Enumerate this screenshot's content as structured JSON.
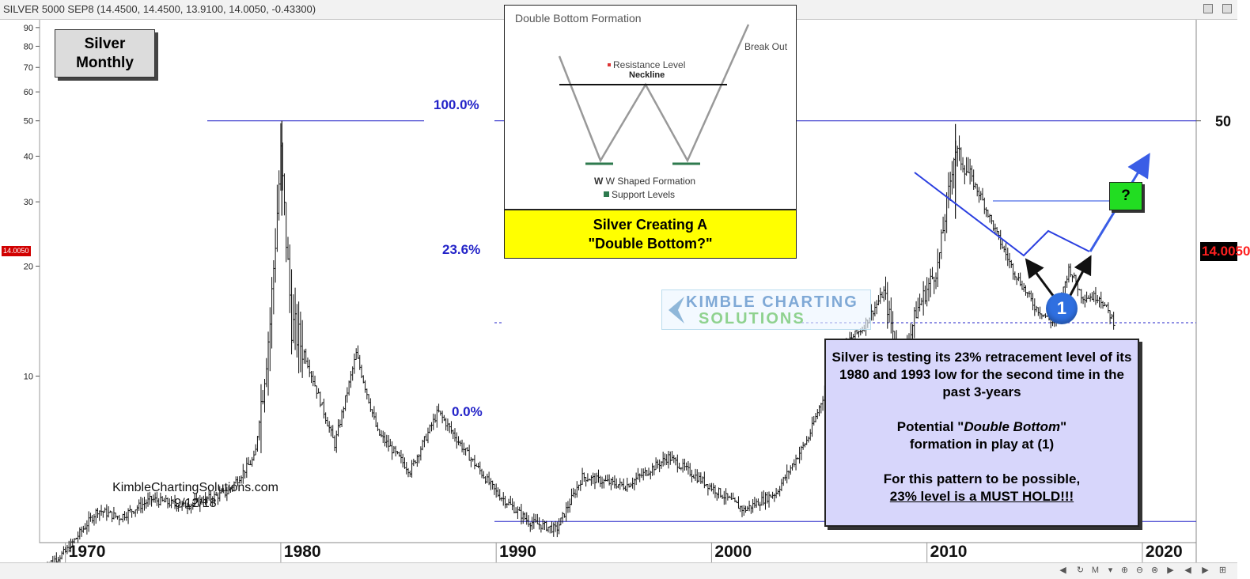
{
  "header": {
    "ticker": "SILVER 5000 SEP8 (14.4500, 14.4500, 13.9100, 14.0050, -0.43300)"
  },
  "title_box": {
    "line1": "Silver",
    "line2": "Monthly"
  },
  "inset": {
    "title": "Double Bottom Formation",
    "resistance": "Resistance Level",
    "neckline": "Neckline",
    "breakout": "Break Out",
    "w_shape": "W Shaped Formation",
    "support": "Support Levels"
  },
  "callout": {
    "line1": "Silver Creating A",
    "line2": "\"Double Bottom?\""
  },
  "fib_levels": {
    "top": "100.0%",
    "mid": "23.6%",
    "bottom": "0.0%"
  },
  "annotations": {
    "question": "?",
    "marker": "1"
  },
  "note": {
    "p1": "Silver is testing its 23% retracement level of its 1980 and 1993 low for the second time in the past 3-years",
    "p2a": "Potential \"",
    "p2b": "Double Bottom",
    "p2c": "\"",
    "p2d": "formation in play at (1)",
    "p3": "For this pattern to be possible,",
    "p4": "23% level is a MUST HOLD!!!"
  },
  "credit": {
    "site": "KimbleChartingSolutions.com",
    "date": "9/12/18"
  },
  "price_tags": {
    "left": "14.0050",
    "right": "14.0050"
  },
  "watermark": {
    "line1": "KIMBLE CHARTING",
    "line2": "SOLUTIONS"
  },
  "colors": {
    "fib_line": "#2323c8",
    "bars": "#111111",
    "callout_bg": "#ffff00",
    "note_bg": "#d7d6fb",
    "question_bg": "#22dd22",
    "marker_bg": "#2f6fe0",
    "price_tag": "#d10000"
  },
  "chart_data": {
    "type": "bar",
    "title": "",
    "xlabel": "",
    "ylabel": "",
    "y_scale": "log",
    "xlim": [
      1968.8,
      2022.5
    ],
    "ylim": [
      3.5,
      95
    ],
    "x_ticks": [
      1970,
      1980,
      1990,
      2000,
      2010,
      2020
    ],
    "y_ticks_left": [
      90,
      80,
      70,
      60,
      50,
      40,
      30,
      20,
      10
    ],
    "y_ticks_right": [
      50
    ],
    "fib_retracement": {
      "high": 50,
      "low": 4.0,
      "levels": [
        {
          "label": "100.0%",
          "value": 50
        },
        {
          "label": "23.6%",
          "value": 14.0
        },
        {
          "label": "0.0%",
          "value": 4.0
        }
      ]
    },
    "last_price": 14.005,
    "monthly_closes_anchors": [
      {
        "x": 1969.0,
        "y": 3.0
      },
      {
        "x": 1970.0,
        "y": 3.3
      },
      {
        "x": 1971.5,
        "y": 4.3
      },
      {
        "x": 1972.5,
        "y": 4.1
      },
      {
        "x": 1974.0,
        "y": 4.6
      },
      {
        "x": 1975.5,
        "y": 4.4
      },
      {
        "x": 1977.5,
        "y": 4.8
      },
      {
        "x": 1978.8,
        "y": 6.0
      },
      {
        "x": 1979.5,
        "y": 14.0
      },
      {
        "x": 1980.0,
        "y": 40.0
      },
      {
        "x": 1980.5,
        "y": 14.0
      },
      {
        "x": 1981.0,
        "y": 12.0
      },
      {
        "x": 1982.5,
        "y": 6.5
      },
      {
        "x": 1983.5,
        "y": 11.5
      },
      {
        "x": 1984.5,
        "y": 7.0
      },
      {
        "x": 1986.0,
        "y": 5.5
      },
      {
        "x": 1987.3,
        "y": 8.0
      },
      {
        "x": 1988.5,
        "y": 6.3
      },
      {
        "x": 1990.0,
        "y": 4.8
      },
      {
        "x": 1991.5,
        "y": 4.0
      },
      {
        "x": 1992.8,
        "y": 3.8
      },
      {
        "x": 1994.0,
        "y": 5.3
      },
      {
        "x": 1996.0,
        "y": 5.0
      },
      {
        "x": 1998.0,
        "y": 6.0
      },
      {
        "x": 1999.5,
        "y": 5.2
      },
      {
        "x": 2001.5,
        "y": 4.3
      },
      {
        "x": 2003.0,
        "y": 4.8
      },
      {
        "x": 2004.5,
        "y": 6.8
      },
      {
        "x": 2006.0,
        "y": 12.0
      },
      {
        "x": 2007.0,
        "y": 13.5
      },
      {
        "x": 2008.0,
        "y": 17.0
      },
      {
        "x": 2008.8,
        "y": 10.5
      },
      {
        "x": 2009.5,
        "y": 15.0
      },
      {
        "x": 2010.5,
        "y": 20.0
      },
      {
        "x": 2011.3,
        "y": 42.0
      },
      {
        "x": 2012.5,
        "y": 31.0
      },
      {
        "x": 2013.3,
        "y": 24.0
      },
      {
        "x": 2014.0,
        "y": 19.5
      },
      {
        "x": 2015.0,
        "y": 15.5
      },
      {
        "x": 2015.9,
        "y": 13.9
      },
      {
        "x": 2016.6,
        "y": 19.8
      },
      {
        "x": 2017.2,
        "y": 16.5
      },
      {
        "x": 2018.0,
        "y": 16.5
      },
      {
        "x": 2018.7,
        "y": 14.0
      }
    ]
  }
}
